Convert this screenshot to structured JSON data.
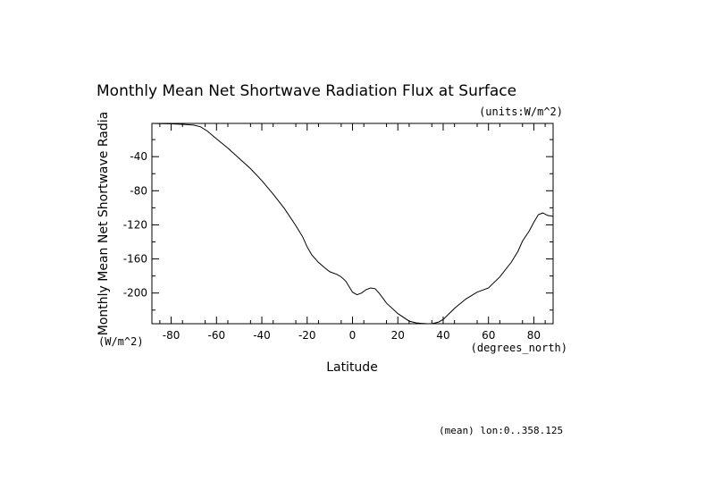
{
  "chart_data": {
    "type": "line",
    "title": "Monthly Mean Net Shortwave Radiation Flux at Surface",
    "units_note": "(units:W/m^2)",
    "xlabel": "Latitude",
    "x_units": "(degrees_north)",
    "ylabel": "Monthly Mean Net Shortwave Radia",
    "y_units": "(W/m^2)",
    "footnote": "(mean) lon:0..358.125",
    "xlim": [
      -88.5,
      88.5
    ],
    "ylim": [
      -236,
      -1
    ],
    "x_ticks": [
      -80,
      -60,
      -40,
      -20,
      0,
      20,
      40,
      60,
      80
    ],
    "y_ticks": [
      -40,
      -80,
      -120,
      -160,
      -200
    ],
    "grid": false,
    "series": [
      {
        "x": [
          -88.5,
          -80,
          -75,
          -70,
          -67,
          -64,
          -60,
          -55,
          -50,
          -45,
          -40,
          -35,
          -30,
          -25,
          -22,
          -20,
          -18,
          -15,
          -12,
          -10,
          -7,
          -5,
          -3,
          0,
          2,
          4,
          6,
          8,
          10,
          12,
          15,
          20,
          25,
          28,
          30,
          33,
          35,
          38,
          40,
          45,
          50,
          55,
          60,
          65,
          70,
          73,
          75,
          78,
          80,
          82,
          84,
          86,
          88.5
        ],
        "y": [
          -1,
          -1.5,
          -2,
          -3,
          -5,
          -10,
          -19,
          -30,
          -42,
          -54,
          -68,
          -84,
          -101,
          -121,
          -134,
          -146,
          -155,
          -164,
          -171,
          -175,
          -178,
          -181,
          -186,
          -199,
          -202,
          -200,
          -196,
          -194,
          -195,
          -201,
          -212,
          -224,
          -233,
          -235,
          -235.5,
          -236,
          -236,
          -234,
          -231,
          -218,
          -207,
          -199,
          -194,
          -181,
          -164,
          -151,
          -139,
          -127,
          -117,
          -108,
          -106,
          -109,
          -110
        ]
      }
    ]
  }
}
